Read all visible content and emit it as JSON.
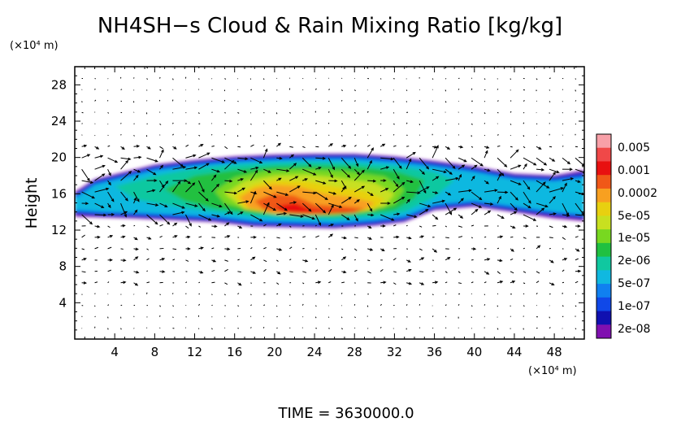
{
  "chart_data": {
    "type": "heatmap",
    "title": "NH4SH−s Cloud & Rain Mixing Ratio [kg/kg]",
    "ylabel": "Height",
    "x_unit": "(×10⁴ m)",
    "y_unit": "(×10⁴ m)",
    "xlim": [
      0,
      51
    ],
    "ylim": [
      0,
      30
    ],
    "x_ticks": [
      4,
      8,
      12,
      16,
      20,
      24,
      28,
      32,
      36,
      40,
      44,
      48
    ],
    "y_ticks": [
      4,
      8,
      12,
      16,
      20,
      24,
      28
    ],
    "colorbar": {
      "levels": [
        "0.005",
        "0.001",
        "0.0002",
        "5e-05",
        "1e-05",
        "2e-06",
        "5e-07",
        "1e-07",
        "2e-08"
      ],
      "colors": [
        "#f8a0a8",
        "#f04848",
        "#e81010",
        "#f05818",
        "#f8a020",
        "#e8d010",
        "#c8e020",
        "#78d820",
        "#20c040",
        "#10c8a0",
        "#10b8e0",
        "#1080f0",
        "#1048e8",
        "#1010b0",
        "#8010b0"
      ]
    },
    "cloud_layer": {
      "bottom_height": 12.5,
      "top_height": 20,
      "core_x_range": [
        16,
        32
      ],
      "core_height_range": [
        12,
        18
      ]
    },
    "vectors": "wind field",
    "time_label": "TIME = 3630000.0"
  }
}
